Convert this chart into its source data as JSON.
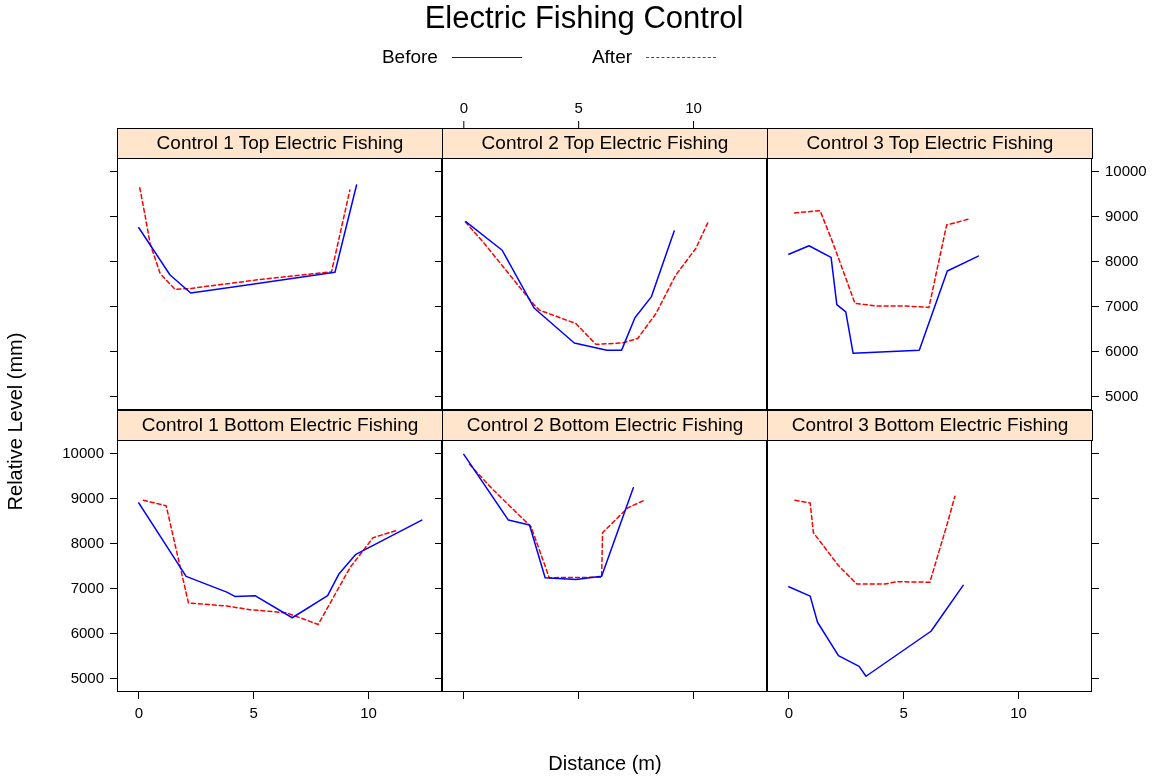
{
  "chart_data": [
    {
      "type": "line",
      "title": "Control 1 Top Electric Fishing",
      "annotations": [
        "Electric Fishing Control"
      ],
      "legend": "top",
      "marker": "none",
      "tick_labels": false,
      "xlim": [
        -0.95,
        13.2
      ],
      "ylim": [
        4700,
        10300
      ],
      "xticks": [
        0,
        5,
        10
      ],
      "yticks": [
        5000,
        6000,
        7000,
        8000,
        9000,
        10000
      ],
      "grid": false,
      "series": [
        {
          "name": "Before",
          "color": "#0000ff",
          "line_style": "solid",
          "x": [
            0,
            1.36,
            2.26,
            8.54,
            9.48
          ],
          "values": [
            8750,
            7700,
            7300,
            7760,
            9700
          ]
        },
        {
          "name": "After",
          "color": "#ff0000",
          "line_style": "dashed",
          "x": [
            0.04,
            0.27,
            0.49,
            0.93,
            1.58,
            2.23,
            5.28,
            8.39,
            9.19
          ],
          "values": [
            9640,
            9030,
            8400,
            7730,
            7380,
            7400,
            7600,
            7770,
            9590
          ]
        }
      ]
    },
    {
      "type": "line",
      "title": "Control 2 Top Electric Fishing",
      "marker": "none",
      "tick_labels": "x",
      "xlim": [
        -0.95,
        13.2
      ],
      "ylim": [
        4700,
        10300
      ],
      "xticks": [
        0,
        5,
        10
      ],
      "yticks": [
        5000,
        6000,
        7000,
        8000,
        9000,
        10000
      ],
      "grid": false,
      "series": [
        {
          "color": "#0000ff",
          "line_style": "solid",
          "x": [
            0.1,
            1.67,
            3.07,
            4.81,
            6.23,
            6.87,
            7.45,
            8.17,
            9.16
          ],
          "values": [
            8880,
            8250,
            6960,
            6190,
            6030,
            6030,
            6750,
            7220,
            8680
          ]
        },
        {
          "color": "#ff0000",
          "line_style": "dashed",
          "x": [
            0.07,
            0.83,
            3.0,
            3.29,
            4.88,
            5.75,
            6.91,
            7.57,
            8.36,
            9.23,
            10.1,
            10.64
          ],
          "values": [
            8880,
            8440,
            7070,
            6920,
            6620,
            6160,
            6190,
            6290,
            6840,
            7700,
            8290,
            8880
          ]
        }
      ]
    },
    {
      "type": "line",
      "title": "Control 3 Top Electric Fishing",
      "marker": "none",
      "tick_labels": "y",
      "xlim": [
        -0.95,
        13.2
      ],
      "ylim": [
        4700,
        10300
      ],
      "xticks": [
        0,
        5,
        10
      ],
      "yticks": [
        5000,
        6000,
        7000,
        8000,
        9000,
        10000
      ],
      "grid": false,
      "series": [
        {
          "color": "#0000ff",
          "line_style": "solid",
          "x": [
            0,
            0.88,
            1.84,
            2.09,
            2.48,
            2.8,
            5.68,
            6.9,
            8.25
          ],
          "values": [
            8160,
            8350,
            8090,
            7040,
            6880,
            5960,
            6030,
            7790,
            8120
          ]
        },
        {
          "color": "#ff0000",
          "line_style": "dashed",
          "x": [
            0.25,
            1.36,
            1.93,
            2.88,
            3.83,
            5.13,
            6.1,
            6.87,
            7.81
          ],
          "values": [
            9080,
            9130,
            8400,
            7070,
            7010,
            7010,
            6980,
            8810,
            8940
          ]
        }
      ]
    },
    {
      "type": "line",
      "title": "Control 1 Bottom Electric Fishing",
      "ylabel": "Relative Level (mm)",
      "marker": "none",
      "xlim": [
        -0.95,
        13.2
      ],
      "ylim": [
        4700,
        10300
      ],
      "xticks": [
        0,
        5,
        10
      ],
      "yticks": [
        5000,
        6000,
        7000,
        8000,
        9000,
        10000
      ],
      "grid": false,
      "series": [
        {
          "color": "#0000ff",
          "line_style": "solid",
          "x": [
            0,
            2.06,
            3.83,
            4.2,
            5.06,
            6.68,
            8.22,
            8.72,
            9.45,
            12.32
          ],
          "values": [
            8900,
            7270,
            6920,
            6820,
            6840,
            6350,
            6840,
            7330,
            7760,
            8520
          ]
        },
        {
          "color": "#ff0000",
          "line_style": "dashed",
          "x": [
            0.2,
            1.19,
            2.16,
            3.83,
            4.84,
            6.43,
            7.81,
            9.19,
            10.2,
            11.29
          ],
          "values": [
            8960,
            8840,
            6680,
            6610,
            6530,
            6460,
            6200,
            7460,
            8130,
            8300
          ]
        }
      ]
    },
    {
      "type": "line",
      "title": "Control 2 Bottom Electric Fishing",
      "xlabel": "Distance (m)",
      "marker": "none",
      "tick_labels": false,
      "xlim": [
        -0.95,
        13.2
      ],
      "ylim": [
        4700,
        10300
      ],
      "xticks": [
        0,
        5,
        10
      ],
      "yticks": [
        5000,
        6000,
        7000,
        8000,
        9000,
        10000
      ],
      "grid": false,
      "series": [
        {
          "color": "#0000ff",
          "line_style": "solid",
          "x": [
            0,
            1.94,
            2.86,
            3.54,
            4.88,
            6.0,
            7.38
          ],
          "values": [
            9980,
            8520,
            8410,
            7240,
            7200,
            7270,
            9240
          ]
        },
        {
          "color": "#ff0000",
          "line_style": "dashed",
          "x": [
            0.25,
            1.26,
            2.93,
            3.72,
            6.0,
            6.04,
            7.13,
            7.9
          ],
          "values": [
            9760,
            9200,
            8370,
            7240,
            7250,
            8240,
            8790,
            8970
          ]
        }
      ]
    },
    {
      "type": "line",
      "title": "Control 3 Bottom Electric Fishing",
      "marker": "none",
      "tick_labels": "x",
      "xlim": [
        -0.95,
        13.2
      ],
      "ylim": [
        4700,
        10300
      ],
      "xticks": [
        0,
        5,
        10
      ],
      "yticks": [
        5000,
        6000,
        7000,
        8000,
        9000,
        10000
      ],
      "grid": false,
      "series": [
        {
          "color": "#0000ff",
          "line_style": "solid",
          "x": [
            0,
            0.93,
            1.25,
            2.16,
            3.06,
            3.36,
            6.19,
            7.59
          ],
          "values": [
            7040,
            6830,
            6250,
            5510,
            5270,
            5050,
            6050,
            7070
          ]
        },
        {
          "color": "#ff0000",
          "line_style": "dashed",
          "x": [
            0.27,
            0.93,
            1.07,
            2.16,
            2.96,
            4.19,
            4.7,
            6.14,
            6.87,
            7.23
          ],
          "values": [
            8960,
            8900,
            8240,
            7510,
            7100,
            7100,
            7150,
            7140,
            8390,
            9050
          ]
        }
      ]
    }
  ]
}
